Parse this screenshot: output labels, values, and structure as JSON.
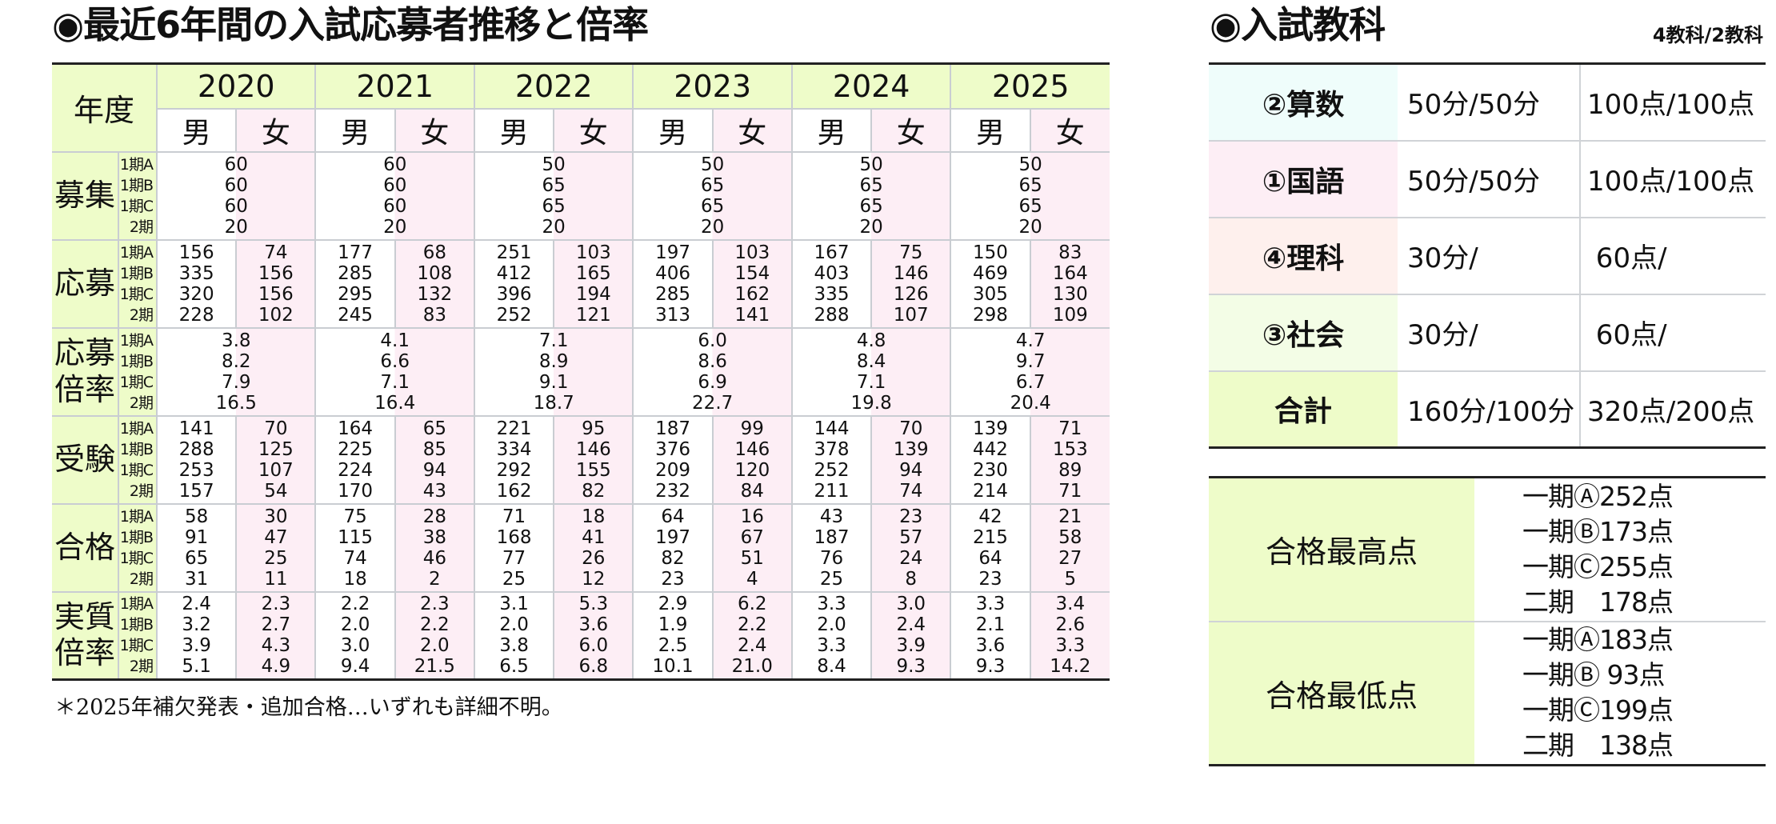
{
  "left": {
    "title": "◉最近6年間の入試応募者推移と倍率",
    "header_label": "年度",
    "years": [
      "2020",
      "2021",
      "2022",
      "2023",
      "2024",
      "2025"
    ],
    "male": "男",
    "female": "女",
    "sub_labels": "1期A\n1期B\n1期C\n 2期",
    "rows": [
      {
        "label": "募集",
        "merged": true,
        "values": [
          [
            "60",
            "60",
            "60",
            "20"
          ],
          [
            "60",
            "60",
            "60",
            "20"
          ],
          [
            "50",
            "65",
            "65",
            "20"
          ],
          [
            "50",
            "65",
            "65",
            "20"
          ],
          [
            "50",
            "65",
            "65",
            "20"
          ],
          [
            "50",
            "65",
            "65",
            "20"
          ]
        ]
      },
      {
        "label": "応募",
        "merged": false,
        "values": [
          [
            [
              "156",
              "335",
              "320",
              "228"
            ],
            [
              "74",
              "156",
              "156",
              "102"
            ]
          ],
          [
            [
              "177",
              "285",
              "295",
              "245"
            ],
            [
              "68",
              "108",
              "132",
              "83"
            ]
          ],
          [
            [
              "251",
              "412",
              "396",
              "252"
            ],
            [
              "103",
              "165",
              "194",
              "121"
            ]
          ],
          [
            [
              "197",
              "406",
              "285",
              "313"
            ],
            [
              "103",
              "154",
              "162",
              "141"
            ]
          ],
          [
            [
              "167",
              "403",
              "335",
              "288"
            ],
            [
              "75",
              "146",
              "126",
              "107"
            ]
          ],
          [
            [
              "150",
              "469",
              "305",
              "298"
            ],
            [
              "83",
              "164",
              "130",
              "109"
            ]
          ]
        ]
      },
      {
        "label": "応募\n倍率",
        "merged": true,
        "values": [
          [
            "3.8",
            "8.2",
            "7.9",
            "16.5"
          ],
          [
            "4.1",
            "6.6",
            "7.1",
            "16.4"
          ],
          [
            "7.1",
            "8.9",
            "9.1",
            "18.7"
          ],
          [
            "6.0",
            "8.6",
            "6.9",
            "22.7"
          ],
          [
            "4.8",
            "8.4",
            "7.1",
            "19.8"
          ],
          [
            "4.7",
            "9.7",
            "6.7",
            "20.4"
          ]
        ]
      },
      {
        "label": "受験",
        "merged": false,
        "values": [
          [
            [
              "141",
              "288",
              "253",
              "157"
            ],
            [
              "70",
              "125",
              "107",
              "54"
            ]
          ],
          [
            [
              "164",
              "225",
              "224",
              "170"
            ],
            [
              "65",
              "85",
              "94",
              "43"
            ]
          ],
          [
            [
              "221",
              "334",
              "292",
              "162"
            ],
            [
              "95",
              "146",
              "155",
              "82"
            ]
          ],
          [
            [
              "187",
              "376",
              "209",
              "232"
            ],
            [
              "99",
              "146",
              "120",
              "84"
            ]
          ],
          [
            [
              "144",
              "378",
              "252",
              "211"
            ],
            [
              "70",
              "139",
              "94",
              "74"
            ]
          ],
          [
            [
              "139",
              "442",
              "230",
              "214"
            ],
            [
              "71",
              "153",
              "89",
              "71"
            ]
          ]
        ]
      },
      {
        "label": "合格",
        "merged": false,
        "values": [
          [
            [
              "58",
              "91",
              "65",
              "31"
            ],
            [
              "30",
              "47",
              "25",
              "11"
            ]
          ],
          [
            [
              "75",
              "115",
              "74",
              "18"
            ],
            [
              "28",
              "38",
              "46",
              "2"
            ]
          ],
          [
            [
              "71",
              "168",
              "77",
              "25"
            ],
            [
              "18",
              "41",
              "26",
              "12"
            ]
          ],
          [
            [
              "64",
              "197",
              "82",
              "23"
            ],
            [
              "16",
              "67",
              "51",
              "4"
            ]
          ],
          [
            [
              "43",
              "187",
              "76",
              "25"
            ],
            [
              "23",
              "57",
              "24",
              "8"
            ]
          ],
          [
            [
              "42",
              "215",
              "64",
              "23"
            ],
            [
              "21",
              "58",
              "27",
              "5"
            ]
          ]
        ]
      },
      {
        "label": "実質\n倍率",
        "merged": false,
        "values": [
          [
            [
              "2.4",
              "3.2",
              "3.9",
              "5.1"
            ],
            [
              "2.3",
              "2.7",
              "4.3",
              "4.9"
            ]
          ],
          [
            [
              "2.2",
              "2.0",
              "3.0",
              "9.4"
            ],
            [
              "2.3",
              "2.2",
              "2.0",
              "21.5"
            ]
          ],
          [
            [
              "3.1",
              "2.0",
              "3.8",
              "6.5"
            ],
            [
              "5.3",
              "3.6",
              "6.0",
              "6.8"
            ]
          ],
          [
            [
              "2.9",
              "1.9",
              "2.5",
              "10.1"
            ],
            [
              "6.2",
              "2.2",
              "2.4",
              "21.0"
            ]
          ],
          [
            [
              "3.3",
              "2.0",
              "3.3",
              "8.4"
            ],
            [
              "3.0",
              "2.4",
              "3.9",
              "9.3"
            ]
          ],
          [
            [
              "3.3",
              "2.1",
              "3.6",
              "9.3"
            ],
            [
              "3.4",
              "2.6",
              "3.3",
              "14.2"
            ]
          ]
        ]
      }
    ],
    "note": "＊2025年補欠発表・追加合格…いずれも詳細不明。"
  },
  "right": {
    "title": "◉入試教科",
    "subtitle": "4教科/2教科",
    "subjects": [
      {
        "name": "②算数",
        "time": "50分/50分",
        "points": "100点/100点",
        "color": "#effdfb"
      },
      {
        "name": "①国語",
        "time": "50分/50分",
        "points": "100点/100点",
        "color": "#fdeef5"
      },
      {
        "name": "④理科",
        "time": "30分/",
        "points": " 60点/",
        "color": "#fef0ed"
      },
      {
        "name": "③社会",
        "time": "30分/",
        "points": " 60点/",
        "color": "#f3fde6"
      },
      {
        "name": "合計",
        "time": "160分/100分",
        "points": "320点/200点",
        "color": "#eefcc9"
      }
    ],
    "scores": [
      {
        "label": "合格最高点",
        "lines": "一期Ⓐ252点\n一期Ⓑ173点\n一期Ⓒ255点\n二期　178点"
      },
      {
        "label": "合格最低点",
        "lines": "一期Ⓐ183点\n一期Ⓑ 93点\n一期Ⓒ199点\n二期　138点"
      }
    ]
  }
}
